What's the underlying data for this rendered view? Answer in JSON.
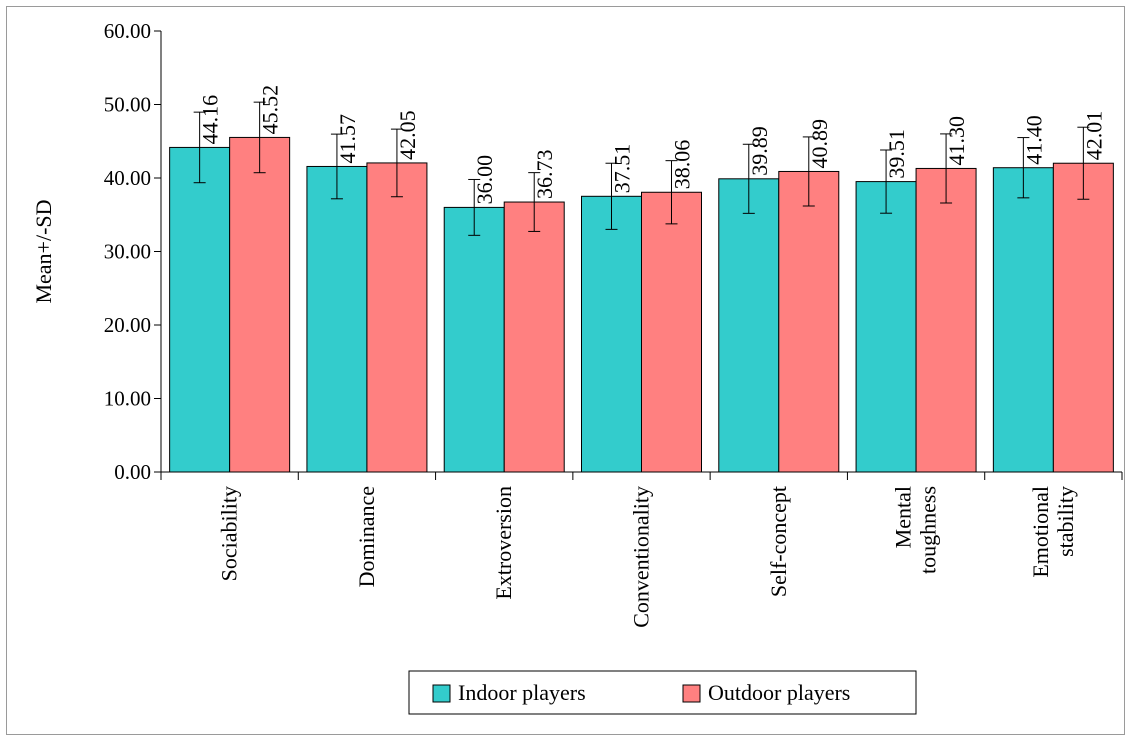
{
  "chart_data": {
    "type": "bar",
    "title": "",
    "xlabel": "",
    "ylabel": "Mean+/-SD",
    "ylim": [
      0,
      60
    ],
    "y_ticks": [
      0,
      10,
      20,
      30,
      40,
      50,
      60
    ],
    "y_tick_labels": [
      "0.00",
      "10.00",
      "20.00",
      "30.00",
      "40.00",
      "50.00",
      "60.00"
    ],
    "categories": [
      [
        "Sociability"
      ],
      [
        "Dominance"
      ],
      [
        "Extroversion"
      ],
      [
        "Conventionality"
      ],
      [
        "Self-concept"
      ],
      [
        "Mental",
        "toughness"
      ],
      [
        "Emotional",
        "stability"
      ]
    ],
    "series": [
      {
        "name": "Indoor players",
        "color": "#33CCCC",
        "values": [
          44.16,
          41.57,
          36.0,
          37.51,
          39.89,
          39.51,
          41.4
        ],
        "value_labels": [
          "44.16",
          "41.57",
          "36.00",
          "37.51",
          "39.89",
          "39.51",
          "41.40"
        ],
        "sd": [
          4.8,
          4.4,
          3.8,
          4.5,
          4.7,
          4.3,
          4.1
        ]
      },
      {
        "name": "Outdoor players",
        "color": "#FF8080",
        "values": [
          45.52,
          42.05,
          36.73,
          38.06,
          40.89,
          41.3,
          42.01
        ],
        "value_labels": [
          "45.52",
          "42.05",
          "36.73",
          "38.06",
          "40.89",
          "41.30",
          "42.01"
        ],
        "sd": [
          4.8,
          4.6,
          4.0,
          4.3,
          4.7,
          4.7,
          4.9
        ]
      }
    ],
    "error_bars": "SD",
    "grid": false,
    "legend_position": "bottom-center"
  }
}
